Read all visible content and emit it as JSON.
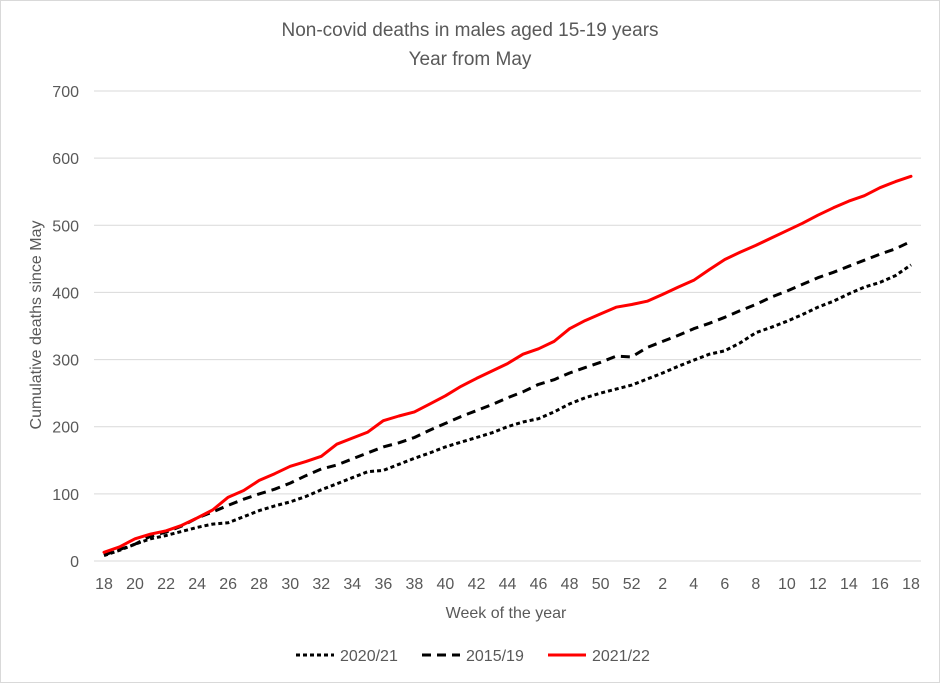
{
  "chart_data": {
    "type": "line",
    "title": "Non-covid deaths in males aged 15-19 years",
    "subtitle": "Year from May",
    "xlabel": "Week of the year",
    "ylabel": "Cumulative deaths since May",
    "ylim": [
      0,
      700
    ],
    "yticks": [
      0,
      100,
      200,
      300,
      400,
      500,
      600,
      700
    ],
    "grid": true,
    "legend_position": "bottom",
    "x": [
      18,
      19,
      20,
      21,
      22,
      23,
      24,
      25,
      26,
      27,
      28,
      29,
      30,
      31,
      32,
      33,
      34,
      35,
      36,
      37,
      38,
      39,
      40,
      41,
      42,
      43,
      44,
      45,
      46,
      47,
      48,
      49,
      50,
      51,
      52,
      1,
      2,
      3,
      4,
      5,
      6,
      7,
      8,
      9,
      10,
      11,
      12,
      13,
      14,
      15,
      16,
      17,
      18
    ],
    "x_tick_labels": [
      "18",
      "20",
      "22",
      "24",
      "26",
      "28",
      "30",
      "32",
      "34",
      "36",
      "38",
      "40",
      "42",
      "44",
      "46",
      "48",
      "50",
      "52",
      "2",
      "4",
      "6",
      "8",
      "10",
      "12",
      "14",
      "16",
      "18"
    ],
    "series": [
      {
        "name": "2020/21",
        "color": "#000000",
        "dash": "dotted",
        "values": [
          8,
          16,
          25,
          33,
          38,
          44,
          50,
          55,
          57,
          66,
          75,
          82,
          88,
          96,
          106,
          115,
          124,
          133,
          135,
          144,
          153,
          161,
          170,
          177,
          184,
          191,
          200,
          207,
          212,
          222,
          234,
          243,
          250,
          256,
          262,
          271,
          280,
          290,
          299,
          308,
          313,
          325,
          340,
          348,
          357,
          367,
          378,
          387,
          398,
          408,
          415,
          425,
          441
        ]
      },
      {
        "name": "2015/19",
        "color": "#000000",
        "dash": "dashed",
        "values": [
          9,
          17,
          25,
          37,
          43,
          52,
          64,
          73,
          83,
          92,
          100,
          107,
          116,
          127,
          137,
          143,
          152,
          161,
          170,
          176,
          184,
          195,
          205,
          215,
          224,
          233,
          243,
          252,
          263,
          270,
          280,
          288,
          296,
          305,
          304,
          318,
          327,
          336,
          346,
          354,
          363,
          373,
          382,
          393,
          402,
          412,
          422,
          430,
          439,
          448,
          457,
          465,
          476
        ]
      },
      {
        "name": "2021/22",
        "color": "#ff0000",
        "dash": "solid",
        "values": [
          13,
          21,
          33,
          40,
          45,
          53,
          64,
          76,
          95,
          105,
          120,
          130,
          141,
          148,
          156,
          174,
          183,
          192,
          209,
          216,
          222,
          234,
          246,
          260,
          272,
          283,
          294,
          308,
          316,
          327,
          346,
          358,
          368,
          378,
          382,
          387,
          397,
          408,
          418,
          434,
          449,
          460,
          470,
          481,
          492,
          503,
          515,
          526,
          536,
          544,
          556,
          565,
          573
        ]
      }
    ]
  }
}
